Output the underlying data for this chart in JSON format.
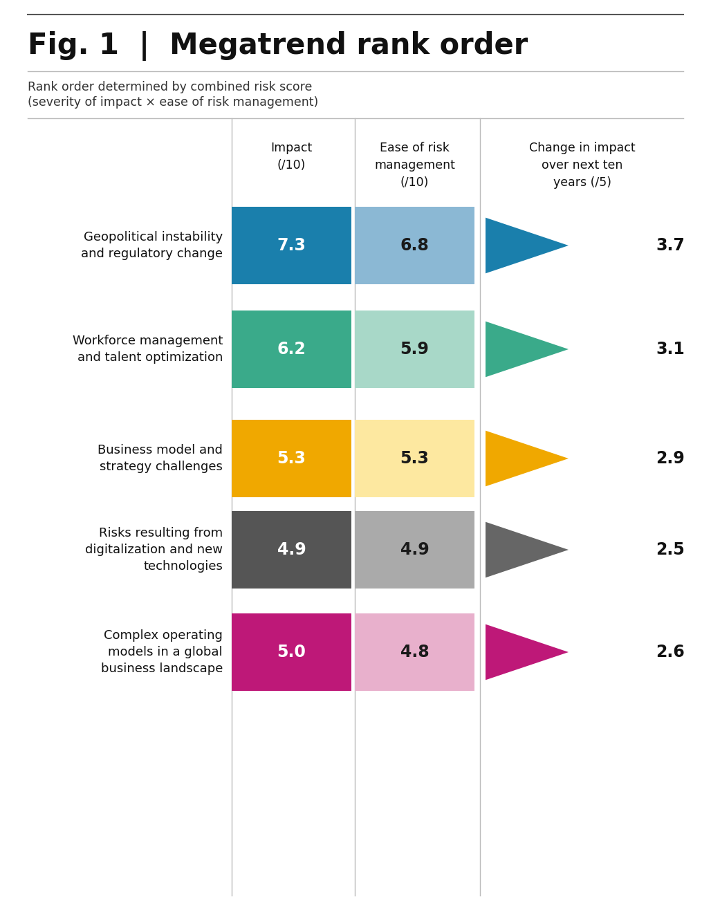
{
  "title": "Fig. 1 │ Megatrend rank order",
  "subtitle_line1": "Rank order determined by combined risk score",
  "subtitle_line2": "(severity of impact × ease of risk management)",
  "rows": [
    {
      "label": "Geopolitical instability\nand regulatory change",
      "impact": 7.3,
      "ease": 6.8,
      "change": 3.7,
      "color_dark": "#1a7fac",
      "color_light": "#8bb8d4",
      "color_arrow": "#1a7fac",
      "impact_text_color": "#ffffff",
      "ease_text_color": "#1a1a1a"
    },
    {
      "label": "Workforce management\nand talent optimization",
      "impact": 6.2,
      "ease": 5.9,
      "change": 3.1,
      "color_dark": "#3aaa8a",
      "color_light": "#a8d8c8",
      "color_arrow": "#3aaa8a",
      "impact_text_color": "#ffffff",
      "ease_text_color": "#1a1a1a"
    },
    {
      "label": "Business model and\nstrategy challenges",
      "impact": 5.3,
      "ease": 5.3,
      "change": 2.9,
      "color_dark": "#f0a800",
      "color_light": "#fde8a0",
      "color_arrow": "#f0a800",
      "impact_text_color": "#ffffff",
      "ease_text_color": "#1a1a1a"
    },
    {
      "label": "Risks resulting from\ndigitalization and new\ntechnologies",
      "impact": 4.9,
      "ease": 4.9,
      "change": 2.5,
      "color_dark": "#555555",
      "color_light": "#aaaaaa",
      "color_arrow": "#666666",
      "impact_text_color": "#ffffff",
      "ease_text_color": "#1a1a1a"
    },
    {
      "label": "Complex operating\nmodels in a global\nbusiness landscape",
      "impact": 5.0,
      "ease": 4.8,
      "change": 2.6,
      "color_dark": "#be1878",
      "color_light": "#e8b0cc",
      "color_arrow": "#be1878",
      "impact_text_color": "#ffffff",
      "ease_text_color": "#1a1a1a"
    }
  ],
  "background_color": "#ffffff"
}
